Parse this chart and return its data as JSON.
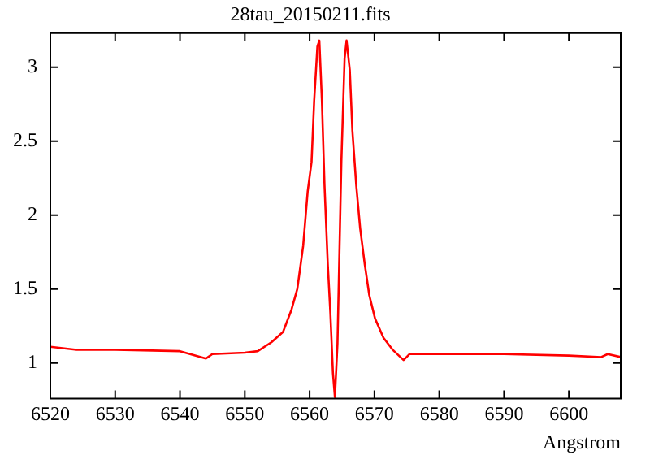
{
  "chart_data": {
    "type": "line",
    "title": "28tau_20150211.fits",
    "xlabel": "Angstrom",
    "x": [
      6520,
      6523.8,
      6530,
      6540,
      6544,
      6545,
      6550,
      6552,
      6554.1,
      6555.9,
      6557.2,
      6558.1,
      6559,
      6559.7,
      6560.3,
      6560.7,
      6561.2,
      6561.5,
      6561.9,
      6562.3,
      6562.8,
      6563.2,
      6563.6,
      6563.9,
      6564.3,
      6564.6,
      6564.9,
      6565.4,
      6565.7,
      6566.2,
      6566.6,
      6567.2,
      6567.8,
      6568.5,
      6569.2,
      6570.1,
      6571.4,
      6572.8,
      6574.5,
      6575.4,
      6580,
      6590,
      6600,
      6605,
      6606,
      6608
    ],
    "series": [
      {
        "color": "#ff0000",
        "values": [
          1.11,
          1.09,
          1.09,
          1.08,
          1.03,
          1.06,
          1.07,
          1.08,
          1.14,
          1.21,
          1.36,
          1.5,
          1.79,
          2.16,
          2.36,
          2.77,
          3.14,
          3.18,
          2.77,
          2.2,
          1.67,
          1.34,
          0.93,
          0.77,
          1.13,
          1.75,
          2.36,
          3.06,
          3.18,
          2.98,
          2.57,
          2.2,
          1.91,
          1.67,
          1.46,
          1.3,
          1.17,
          1.09,
          1.02,
          1.06,
          1.06,
          1.06,
          1.05,
          1.04,
          1.06,
          1.04
        ]
      }
    ],
    "xlim": [
      6520,
      6608
    ],
    "ylim": [
      0.76,
      3.23
    ],
    "xticks": [
      6520,
      6530,
      6540,
      6550,
      6560,
      6570,
      6580,
      6590,
      6600
    ],
    "yticks": [
      1,
      1.5,
      2,
      2.5,
      3
    ],
    "grid": false,
    "legend": false,
    "marker": "none",
    "line_style": "solid"
  }
}
